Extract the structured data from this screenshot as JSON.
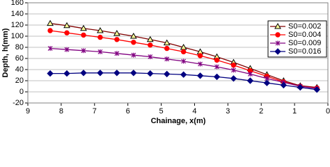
{
  "chart_data": {
    "type": "line",
    "x_label": "Chainage, x(m)",
    "y_label": "Depth, h(mm)",
    "x": [
      8.33,
      7.83,
      7.33,
      6.83,
      6.33,
      5.83,
      5.33,
      4.83,
      4.33,
      3.83,
      3.33,
      2.83,
      2.33,
      1.83,
      1.33,
      0.83,
      0.33
    ],
    "series": [
      {
        "name": "S0=0.002",
        "color": "#800000",
        "marker": "triangle",
        "values": [
          123,
          119,
          114,
          110,
          105,
          100,
          94,
          88,
          80,
          72,
          63,
          53,
          42,
          31,
          20,
          11,
          8
        ]
      },
      {
        "name": "S0=0.004",
        "color": "#ff0000",
        "marker": "circle",
        "values": [
          110,
          106,
          102,
          98,
          94,
          89,
          84,
          78,
          72,
          65,
          57,
          48,
          38,
          28,
          18,
          10,
          7
        ]
      },
      {
        "name": "S0=0.009",
        "color": "#800080",
        "marker": "cross",
        "values": [
          78,
          76,
          74,
          72,
          69,
          66,
          63,
          59,
          55,
          50,
          45,
          39,
          32,
          24,
          17,
          10,
          6
        ]
      },
      {
        "name": "S0=0.016",
        "color": "#000080",
        "marker": "diamond",
        "values": [
          33,
          33,
          34,
          34,
          34,
          34,
          33,
          32,
          31,
          29,
          27,
          24,
          20,
          16,
          12,
          8,
          4
        ]
      }
    ],
    "xlim": [
      9,
      0
    ],
    "xticks": [
      9,
      8,
      7,
      6,
      5,
      4,
      3,
      2,
      1,
      0
    ],
    "ylim": [
      -20,
      160
    ],
    "yticks": [
      -20,
      0,
      20,
      40,
      60,
      80,
      100,
      120,
      140,
      160
    ],
    "grid": true,
    "legend": "top-right"
  }
}
